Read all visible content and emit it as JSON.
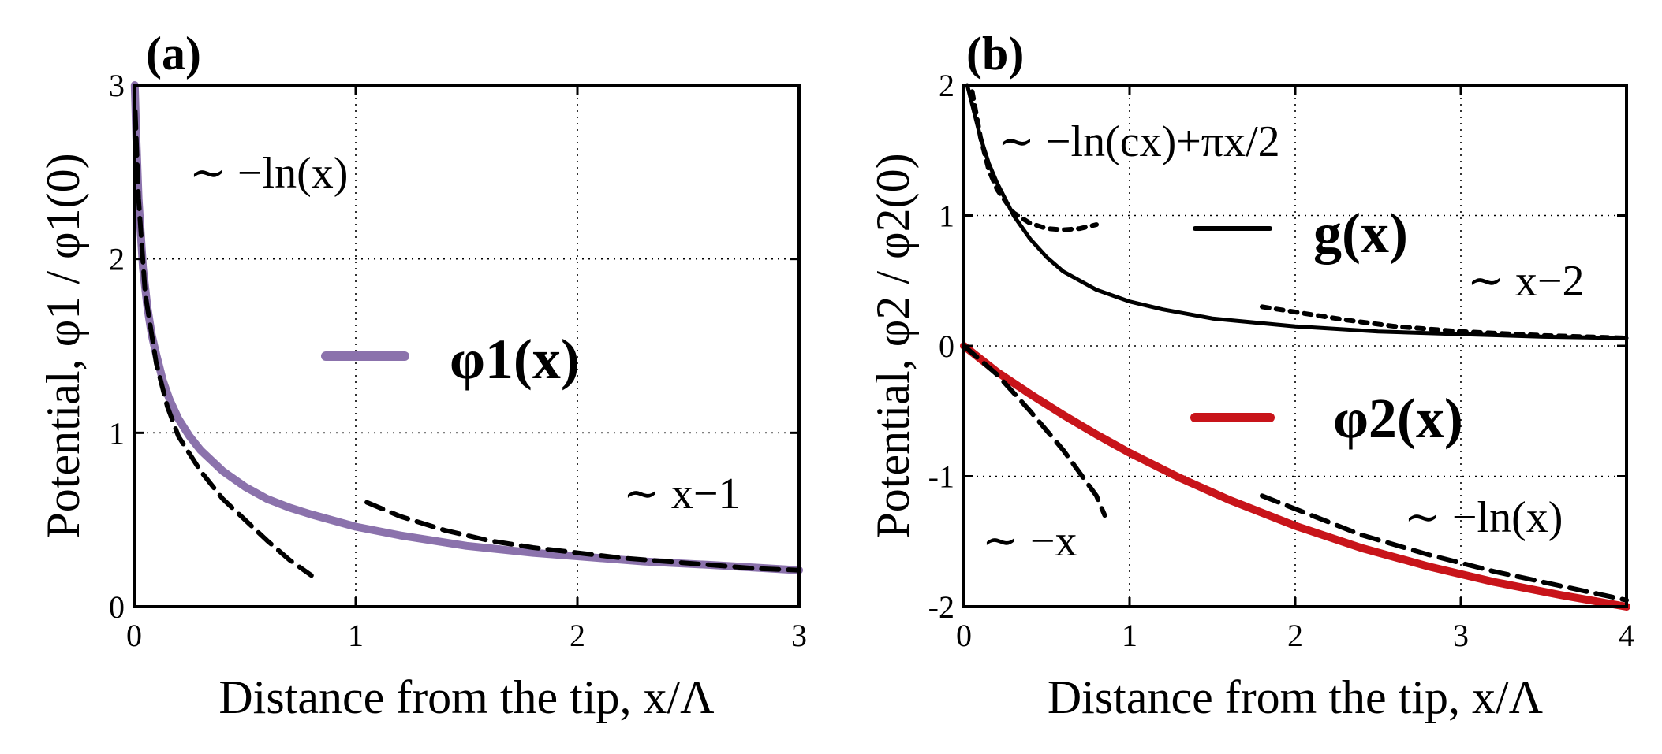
{
  "chart_data": [
    {
      "type": "line",
      "panel_label": "(a)",
      "xlabel": "Distance from the tip, x/Λ",
      "ylabel": "Potential, φ1 / φ1(0)",
      "xlim": [
        0,
        3
      ],
      "ylim": [
        0,
        3
      ],
      "xticks": [
        "0",
        "1",
        "2",
        "3"
      ],
      "yticks": [
        "0",
        "1",
        "2",
        "3"
      ],
      "grid": true,
      "legend": {
        "entries": [
          {
            "label": "φ1(x)",
            "color": "#8b72ac"
          }
        ],
        "location": "center"
      },
      "annotations": [
        {
          "text": "~ −ln(x)",
          "x": 0.25,
          "y": 2.45
        },
        {
          "text": "~ x−1",
          "x": 2.2,
          "y": 0.6
        }
      ],
      "series": [
        {
          "name": "φ1(x)",
          "color": "#8b72ac",
          "style": "solid",
          "x": [
            0.003,
            0.01,
            0.02,
            0.04,
            0.06,
            0.08,
            0.1,
            0.13,
            0.16,
            0.2,
            0.25,
            0.3,
            0.4,
            0.5,
            0.6,
            0.7,
            0.8,
            1.0,
            1.2,
            1.5,
            1.8,
            2.0,
            2.3,
            2.6,
            3.0
          ],
          "y": [
            3.0,
            2.7,
            2.35,
            1.95,
            1.72,
            1.56,
            1.45,
            1.3,
            1.19,
            1.08,
            0.98,
            0.9,
            0.78,
            0.69,
            0.62,
            0.57,
            0.53,
            0.46,
            0.41,
            0.35,
            0.31,
            0.29,
            0.26,
            0.24,
            0.21
          ]
        },
        {
          "name": "−ln(x) asymptote",
          "color": "#000000",
          "style": "dashed",
          "x": [
            0.005,
            0.02,
            0.05,
            0.1,
            0.15,
            0.2,
            0.3,
            0.4,
            0.5,
            0.6,
            0.7,
            0.8
          ],
          "y": [
            2.85,
            2.35,
            1.8,
            1.4,
            1.15,
            0.98,
            0.78,
            0.62,
            0.5,
            0.38,
            0.27,
            0.18
          ]
        },
        {
          "name": "x−1 asymptote",
          "color": "#000000",
          "style": "dashed",
          "x": [
            1.05,
            1.2,
            1.4,
            1.6,
            1.8,
            2.0,
            2.2,
            2.4,
            2.6,
            2.8,
            3.0
          ],
          "y": [
            0.6,
            0.52,
            0.44,
            0.38,
            0.34,
            0.31,
            0.28,
            0.26,
            0.24,
            0.22,
            0.21
          ]
        }
      ]
    },
    {
      "type": "line",
      "panel_label": "(b)",
      "xlabel": "Distance from the tip, x/Λ",
      "ylabel": "Potential, φ2 / φ2(0)",
      "xlim": [
        0,
        4
      ],
      "ylim": [
        -2,
        2
      ],
      "xticks": [
        "0",
        "1",
        "2",
        "3",
        "4"
      ],
      "yticks": [
        "-2",
        "-1",
        "0",
        "1",
        "2"
      ],
      "grid": true,
      "legend": {
        "entries": [
          {
            "label": "g(x)",
            "color": "#000000"
          },
          {
            "label": "φ2(x)",
            "color": "#c8141a"
          }
        ],
        "location": "center-right"
      },
      "annotations": [
        {
          "text": "~ −ln(cx)+πx/2",
          "x": 0.2,
          "y": 1.45
        },
        {
          "text": "~ x−2",
          "x": 3.1,
          "y": 0.38
        },
        {
          "text": "~ −x",
          "x": 0.1,
          "y": -1.5
        },
        {
          "text": "~ −ln(x)",
          "x": 2.7,
          "y": -1.25
        }
      ],
      "series": [
        {
          "name": "g(x)",
          "color": "#000000",
          "style": "solid",
          "x": [
            0.02,
            0.05,
            0.1,
            0.15,
            0.2,
            0.3,
            0.4,
            0.5,
            0.6,
            0.8,
            1.0,
            1.2,
            1.5,
            2.0,
            2.5,
            3.0,
            3.5,
            4.0
          ],
          "y": [
            2.0,
            1.85,
            1.6,
            1.4,
            1.25,
            1.0,
            0.82,
            0.68,
            0.57,
            0.43,
            0.34,
            0.28,
            0.21,
            0.15,
            0.11,
            0.09,
            0.07,
            0.06
          ]
        },
        {
          "name": "−ln(cx)+πx/2 asymptote",
          "color": "#000000",
          "style": "dotted",
          "x": [
            0.05,
            0.1,
            0.15,
            0.2,
            0.3,
            0.4,
            0.5,
            0.6,
            0.7,
            0.8
          ],
          "y": [
            1.95,
            1.6,
            1.35,
            1.2,
            1.02,
            0.94,
            0.9,
            0.89,
            0.9,
            0.93
          ]
        },
        {
          "name": "x−2 asymptote",
          "color": "#000000",
          "style": "dotted",
          "x": [
            1.8,
            2.0,
            2.3,
            2.6,
            3.0,
            3.5,
            4.0
          ],
          "y": [
            0.3,
            0.26,
            0.2,
            0.15,
            0.11,
            0.08,
            0.06
          ]
        },
        {
          "name": "φ2(x)",
          "color": "#c8141a",
          "style": "solid",
          "x": [
            0.0,
            0.1,
            0.2,
            0.4,
            0.6,
            0.8,
            1.0,
            1.3,
            1.6,
            2.0,
            2.4,
            2.8,
            3.2,
            3.6,
            4.0
          ],
          "y": [
            0.0,
            -0.1,
            -0.2,
            -0.37,
            -0.53,
            -0.68,
            -0.82,
            -1.01,
            -1.18,
            -1.38,
            -1.55,
            -1.69,
            -1.81,
            -1.91,
            -2.0
          ]
        },
        {
          "name": "−x asymptote",
          "color": "#000000",
          "style": "dashed",
          "x": [
            0.0,
            0.2,
            0.4,
            0.6,
            0.8,
            0.85
          ],
          "y": [
            0.0,
            -0.22,
            -0.5,
            -0.8,
            -1.15,
            -1.3
          ]
        },
        {
          "name": "−ln(x) asymptote",
          "color": "#000000",
          "style": "dashed",
          "x": [
            1.8,
            2.0,
            2.4,
            2.8,
            3.2,
            3.6,
            4.0
          ],
          "y": [
            -1.15,
            -1.25,
            -1.45,
            -1.6,
            -1.73,
            -1.84,
            -1.95
          ]
        }
      ]
    }
  ]
}
